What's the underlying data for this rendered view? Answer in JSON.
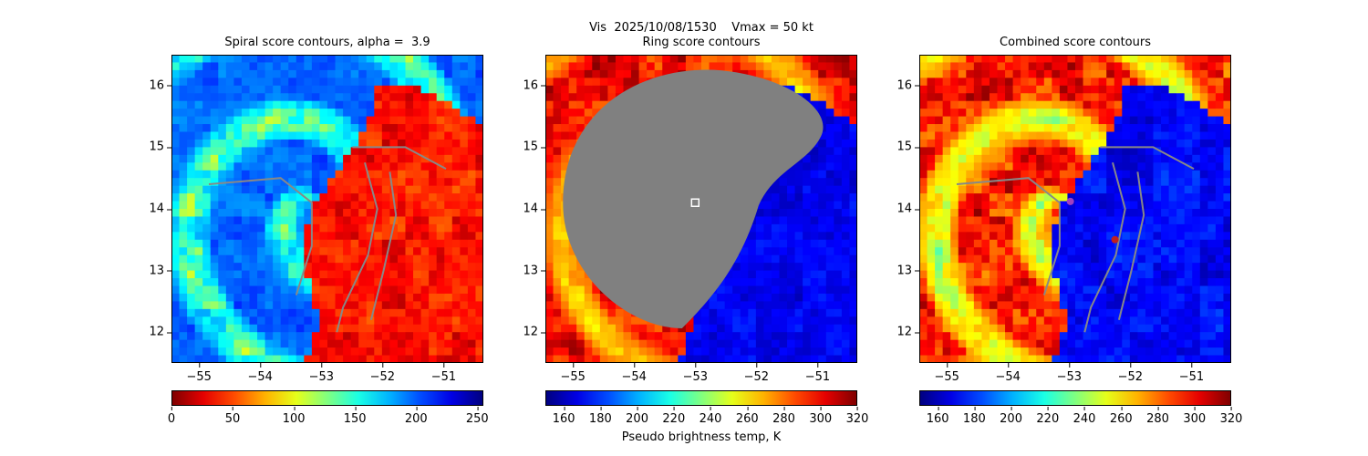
{
  "figure": {
    "suptitle": "Vis  2025/10/08/1530    Vmax = 50 kt",
    "colorbar_label": "Pseudo brightness temp, K",
    "colormap": "jet",
    "land_color": "#808080"
  },
  "chart_data": [
    {
      "type": "heatmap",
      "title": "Spiral score contours, alpha =  3.9",
      "xlabel": "",
      "ylabel": "",
      "xlim": [
        -55.45,
        -50.35
      ],
      "ylim": [
        11.5,
        16.5
      ],
      "x_ticks": [
        -55,
        -54,
        -53,
        -52,
        -51
      ],
      "y_ticks": [
        12,
        13,
        14,
        15,
        16
      ],
      "x_tick_labels": [
        "−55",
        "−54",
        "−53",
        "−52",
        "−51"
      ],
      "y_tick_labels": [
        "12",
        "13",
        "14",
        "15",
        "16"
      ],
      "colorbar": {
        "vmin": 0,
        "vmax": 255,
        "ticks": [
          0,
          50,
          100,
          150,
          200,
          250
        ],
        "colormap": "jet_r"
      },
      "description_values": {
        "cold_cloud_region_value": 230,
        "clear_region_value": 40
      },
      "center_marker": null
    },
    {
      "type": "heatmap",
      "title": "Ring score contours",
      "xlabel": "",
      "ylabel": "",
      "xlim": [
        -55.45,
        -50.35
      ],
      "ylim": [
        11.5,
        16.5
      ],
      "x_ticks": [
        -55,
        -54,
        -53,
        -52,
        -51
      ],
      "y_ticks": [
        12,
        13,
        14,
        15,
        16
      ],
      "x_tick_labels": [
        "−55",
        "−54",
        "−53",
        "−52",
        "−51"
      ],
      "y_tick_labels": [
        "12",
        "13",
        "14",
        "15",
        "16"
      ],
      "colorbar": {
        "vmin": 150,
        "vmax": 320,
        "ticks": [
          160,
          180,
          200,
          220,
          240,
          260,
          280,
          300,
          320
        ],
        "colormap": "jet"
      },
      "masked_region": {
        "center_lon": -53.0,
        "center_lat": 14.1,
        "color": "gray"
      },
      "center_marker": {
        "lon": -53.0,
        "lat": 14.1,
        "shape": "square"
      }
    },
    {
      "type": "heatmap",
      "title": "Combined score contours",
      "xlabel": "",
      "ylabel": "",
      "xlim": [
        -55.45,
        -50.35
      ],
      "ylim": [
        11.5,
        16.5
      ],
      "x_ticks": [
        -55,
        -54,
        -53,
        -52,
        -51
      ],
      "y_ticks": [
        12,
        13,
        14,
        15,
        16
      ],
      "x_tick_labels": [
        "−55",
        "−54",
        "−53",
        "−52",
        "−51"
      ],
      "y_tick_labels": [
        "12",
        "13",
        "14",
        "15",
        "16"
      ],
      "colorbar": {
        "vmin": 150,
        "vmax": 320,
        "ticks": [
          160,
          180,
          200,
          220,
          240,
          260,
          280,
          300,
          320
        ],
        "colormap": "jet"
      },
      "center_marker": {
        "lon": -52.98,
        "lat": 14.12,
        "shape": "circle",
        "color": "#a040c0"
      },
      "secondary_marker": {
        "lon": -52.25,
        "lat": 13.5,
        "shape": "circle",
        "color": "#c02020"
      }
    }
  ]
}
